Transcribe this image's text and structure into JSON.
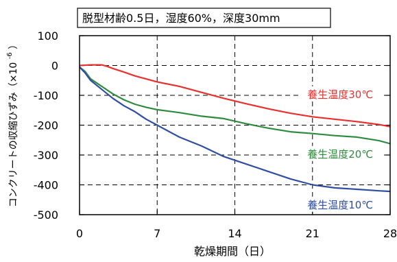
{
  "chart_data": {
    "type": "line",
    "title": "脱型材齢0.5日，湿度60%，深度30mm",
    "xlabel": "乾燥期間（日）",
    "ylabel": "コンクリートの収縮ひずみ（×10",
    "ylabel_superscript": "-6",
    "ylabel_close": "）",
    "xlim": [
      0,
      28
    ],
    "ylim": [
      -500,
      100
    ],
    "xticks": [
      0,
      7,
      14,
      21,
      28
    ],
    "yticks": [
      100,
      0,
      -100,
      -200,
      -300,
      -400,
      -500
    ],
    "grid": "dashed",
    "series": [
      {
        "name": "養生温度30℃",
        "color": "#e8302c",
        "x": [
          0,
          1,
          2,
          2.5,
          3,
          4,
          5,
          7,
          9,
          11,
          13,
          15,
          17,
          19,
          21,
          23,
          25,
          27,
          28
        ],
        "y": [
          0,
          2,
          2,
          -3,
          -10,
          -22,
          -35,
          -55,
          -70,
          -90,
          -110,
          -128,
          -145,
          -160,
          -172,
          -180,
          -188,
          -198,
          -205
        ]
      },
      {
        "name": "養生温度20℃",
        "color": "#2e8b3e",
        "x": [
          0,
          0.5,
          1,
          2,
          3,
          4,
          5,
          6,
          7,
          9,
          11,
          13,
          15,
          17,
          19,
          21,
          23,
          25,
          27,
          28
        ],
        "y": [
          -5,
          -20,
          -45,
          -70,
          -95,
          -115,
          -130,
          -140,
          -148,
          -158,
          -170,
          -178,
          -195,
          -210,
          -222,
          -228,
          -235,
          -240,
          -252,
          -262
        ]
      },
      {
        "name": "養生温度10℃",
        "color": "#2f4da1",
        "x": [
          0,
          0.5,
          1,
          2,
          3,
          4,
          5,
          6,
          7,
          9,
          11,
          13,
          15,
          17,
          19,
          21,
          23,
          25,
          27,
          28
        ],
        "y": [
          -5,
          -25,
          -50,
          -80,
          -110,
          -135,
          -155,
          -180,
          -200,
          -240,
          -270,
          -305,
          -330,
          -355,
          -380,
          -400,
          -410,
          -415,
          -420,
          -422
        ]
      }
    ],
    "labels": [
      {
        "text": "養生温度30℃",
        "series": 0,
        "x": 23.5,
        "y": -95
      },
      {
        "text": "養生温度20℃",
        "series": 1,
        "x": 23.5,
        "y": -295
      },
      {
        "text": "養生温度10℃",
        "series": 2,
        "x": 23.5,
        "y": -465
      }
    ]
  }
}
